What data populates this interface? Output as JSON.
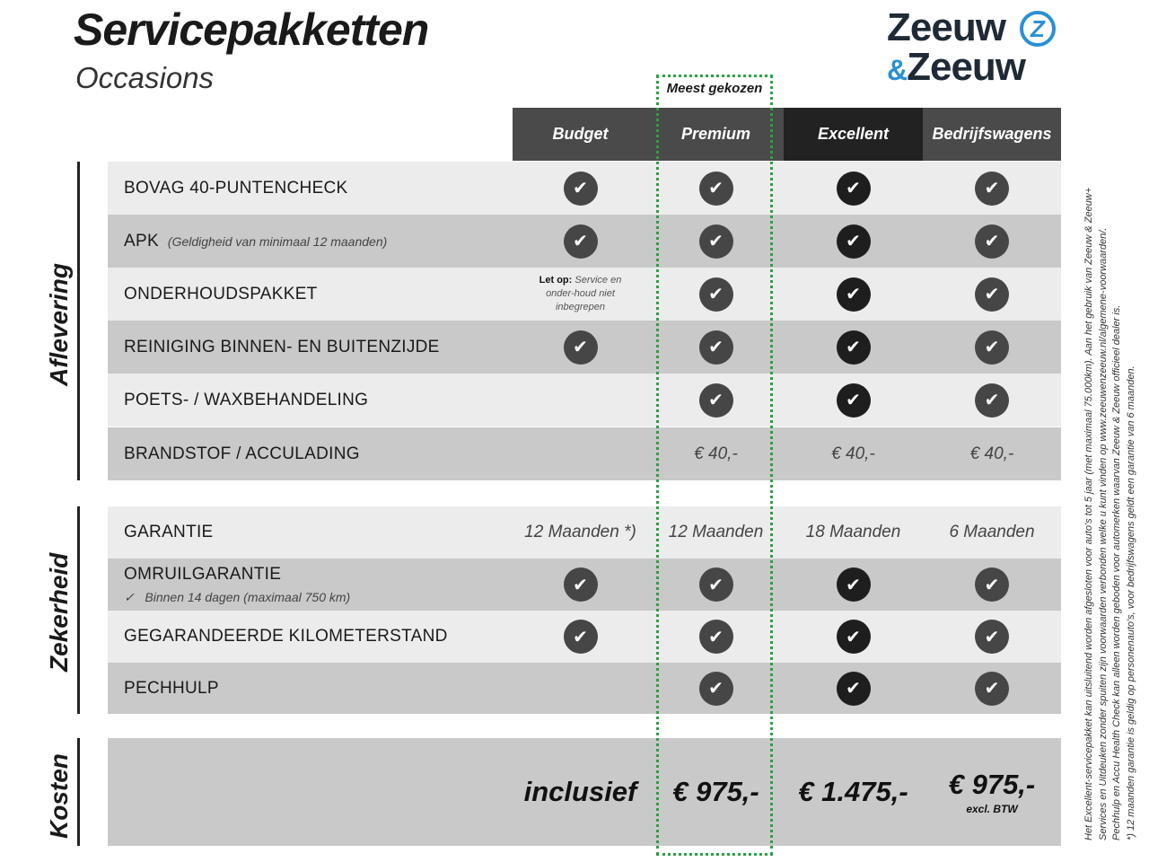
{
  "header": {
    "title": "Servicepakketten",
    "subtitle": "Occasions"
  },
  "logo": {
    "line1": "Zeeuw",
    "line2": "Zeeuw",
    "ampersand": "&",
    "mark": "Z",
    "brand_color": "#2a8fd6"
  },
  "highlight": {
    "label": "Meest gekozen",
    "color": "#2ea043"
  },
  "columns": [
    {
      "label": "Budget",
      "color": "#4a4a4a"
    },
    {
      "label": "Premium",
      "color": "#4a4a4a"
    },
    {
      "label": "Excellent",
      "color": "#222222"
    },
    {
      "label": "Bedrijfswagens",
      "color": "#4a4a4a"
    }
  ],
  "sections": {
    "aflevering": "Aflevering",
    "zekerheid": "Zekerheid",
    "kosten": "Kosten"
  },
  "rows": [
    {
      "label": "BOVAG 40-PUNTENCHECK",
      "cells": [
        true,
        true,
        true,
        true
      ]
    },
    {
      "label": "APK",
      "sub": "(Geldigheid van minimaal 12 maanden)",
      "cells": [
        true,
        true,
        true,
        true
      ]
    },
    {
      "label": "ONDERHOUDSPAKKET",
      "note_bold": "Let op:",
      "note": "Service en onder-houd niet inbegrepen",
      "cells": [
        false,
        true,
        true,
        true
      ]
    },
    {
      "label": "REINIGING BINNEN- EN BUITENZIJDE",
      "cells": [
        true,
        true,
        true,
        true
      ]
    },
    {
      "label": "POETS- / WAXBEHANDELING",
      "cells": [
        false,
        true,
        true,
        true
      ]
    },
    {
      "label": "BRANDSTOF / ACCULADING",
      "values": [
        "",
        "€ 40,-",
        "€ 40,-",
        "€ 40,-"
      ]
    },
    {
      "label": "GARANTIE",
      "values": [
        "12 Maanden *)",
        "12 Maanden",
        "18 Maanden",
        "6 Maanden"
      ]
    },
    {
      "label": "OMRUILGARANTIE",
      "sub": "Binnen 14 dagen (maximaal 750 km)",
      "cells": [
        true,
        true,
        true,
        true
      ]
    },
    {
      "label": "GEGARANDEERDE KILOMETERSTAND",
      "cells": [
        true,
        true,
        true,
        true
      ]
    },
    {
      "label": "PECHHULP",
      "cells": [
        false,
        true,
        true,
        true
      ]
    }
  ],
  "kosten": {
    "values": [
      "inclusief",
      "€ 975,-",
      "€ 1.475,-",
      "€ 975,-"
    ],
    "excl": "excl. BTW"
  },
  "footnote": [
    "Het Excellent-servicepakket kan uitsluitend worden afgesloten voor auto's tot 5 jaar (met maximaal 75.000km). Aan het gebruik van Zeeuw & Zeeuw+",
    "Services en Uitdeuken zonder spuiten zijn voorwaarden verbonden welke u kunt vinden op www.zeeuwenzeeuw.nl/algemene-voorwaarden/.",
    "Pechhulp en Accu Health Check kan alleen worden geboden voor automerken waarvan Zeeuw & Zeeuw officieel dealer is.",
    "*) 12 maanden garantie is geldig op personenauto's, voor bedrijfswagens geldt een garantie van 6 maanden."
  ]
}
